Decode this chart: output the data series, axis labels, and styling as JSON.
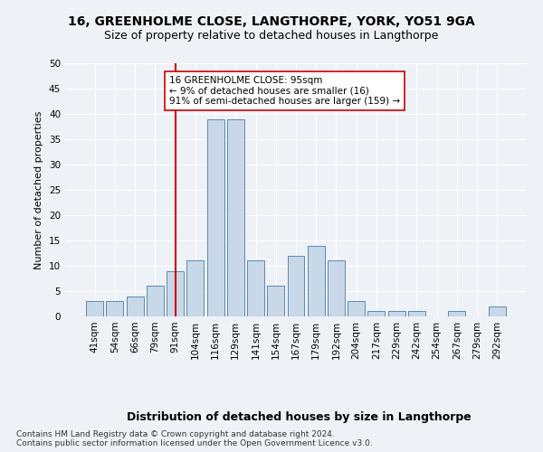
{
  "title1": "16, GREENHOLME CLOSE, LANGTHORPE, YORK, YO51 9GA",
  "title2": "Size of property relative to detached houses in Langthorpe",
  "xlabel": "Distribution of detached houses by size in Langthorpe",
  "ylabel": "Number of detached properties",
  "bar_labels": [
    "41sqm",
    "54sqm",
    "66sqm",
    "79sqm",
    "91sqm",
    "104sqm",
    "116sqm",
    "129sqm",
    "141sqm",
    "154sqm",
    "167sqm",
    "179sqm",
    "192sqm",
    "204sqm",
    "217sqm",
    "229sqm",
    "242sqm",
    "254sqm",
    "267sqm",
    "279sqm",
    "292sqm"
  ],
  "bar_values": [
    3,
    3,
    4,
    6,
    9,
    11,
    39,
    39,
    11,
    6,
    12,
    14,
    11,
    3,
    1,
    1,
    1,
    0,
    1,
    0,
    2
  ],
  "bar_color": "#c8d8e8",
  "bar_edge_color": "#5a8ab0",
  "vline_x_idx": 4,
  "vline_color": "#cc0000",
  "annotation_text": "16 GREENHOLME CLOSE: 95sqm\n← 9% of detached houses are smaller (16)\n91% of semi-detached houses are larger (159) →",
  "annotation_box_color": "#ffffff",
  "annotation_box_edge_color": "#cc0000",
  "ylim": [
    0,
    50
  ],
  "yticks": [
    0,
    5,
    10,
    15,
    20,
    25,
    30,
    35,
    40,
    45,
    50
  ],
  "background_color": "#eef2f7",
  "plot_background": "#eef2f7",
  "footer_line1": "Contains HM Land Registry data © Crown copyright and database right 2024.",
  "footer_line2": "Contains public sector information licensed under the Open Government Licence v3.0.",
  "title1_fontsize": 10,
  "title2_fontsize": 9,
  "xlabel_fontsize": 9,
  "ylabel_fontsize": 8,
  "tick_fontsize": 7.5,
  "annotation_fontsize": 7.5,
  "footer_fontsize": 6.5
}
